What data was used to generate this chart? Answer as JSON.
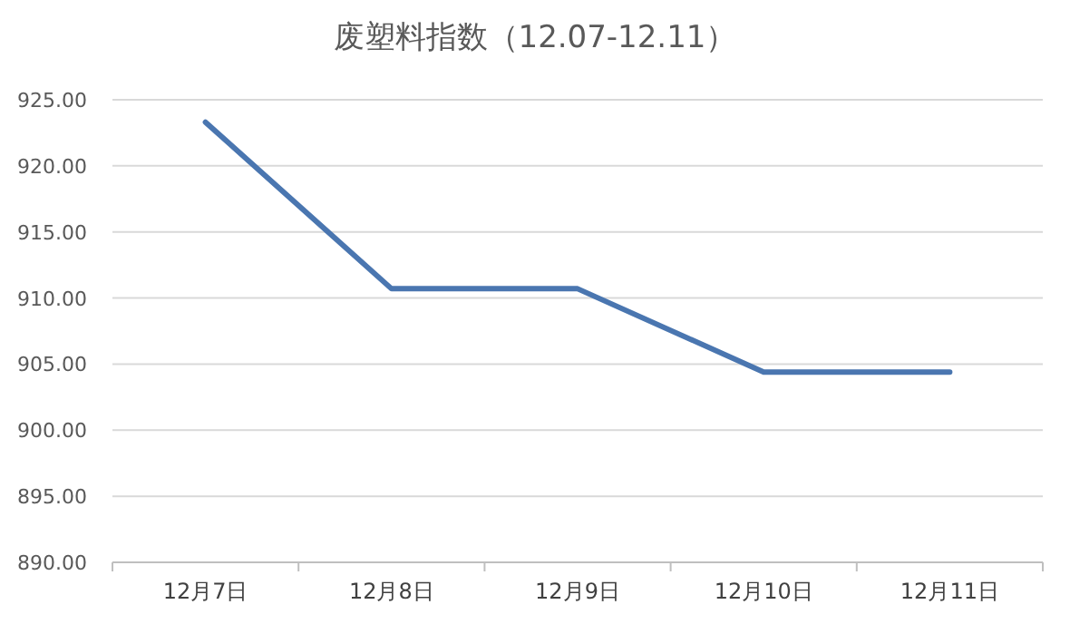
{
  "chart_data": {
    "type": "line",
    "title": "废塑料指数（12.07-12.11）",
    "categories": [
      "12月7日",
      "12月8日",
      "12月9日",
      "12月10日",
      "12月11日"
    ],
    "series": [
      {
        "color": "#4a76b0",
        "values": [
          923.3,
          910.7,
          910.7,
          904.4,
          904.4
        ]
      }
    ],
    "ylim": [
      890,
      925
    ],
    "yticks": [
      {
        "value": 890,
        "label": "890.00"
      },
      {
        "value": 895,
        "label": "895.00"
      },
      {
        "value": 900,
        "label": "900.00"
      },
      {
        "value": 905,
        "label": "905.00"
      },
      {
        "value": 910,
        "label": "910.00"
      },
      {
        "value": 915,
        "label": "915.00"
      },
      {
        "value": 920,
        "label": "920.00"
      },
      {
        "value": 925,
        "label": "925.00"
      }
    ],
    "grid": "y",
    "marker": "none",
    "line_style": "solid"
  }
}
